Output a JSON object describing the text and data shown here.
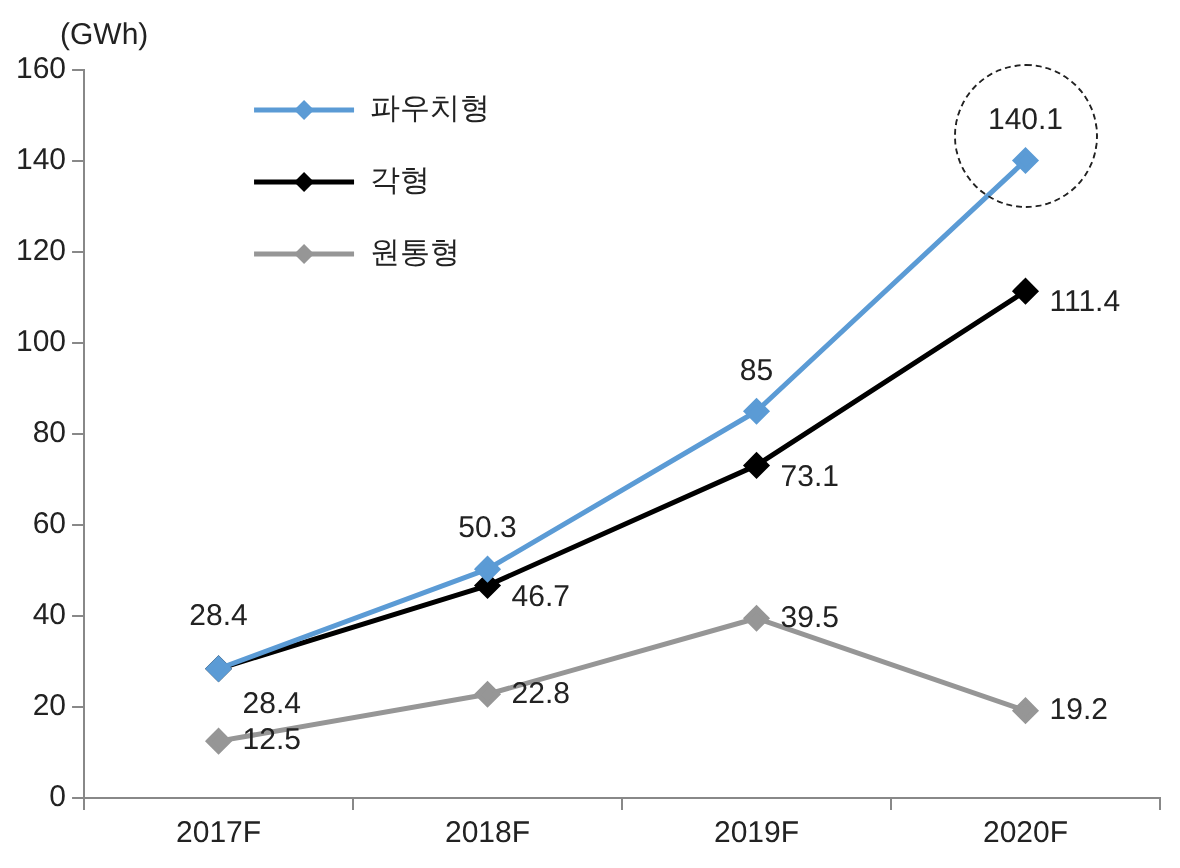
{
  "chart_data": {
    "type": "line",
    "ylabel": "(GWh)",
    "categories": [
      "2017F",
      "2018F",
      "2019F",
      "2020F"
    ],
    "series": [
      {
        "name": "파우치형",
        "color": "#5b9bd5",
        "values": [
          28.4,
          50.3,
          85,
          140.1
        ]
      },
      {
        "name": "각형",
        "color": "#000000",
        "values": [
          28.4,
          46.7,
          73.1,
          111.4
        ]
      },
      {
        "name": "원통형",
        "color": "#969696",
        "values": [
          12.5,
          22.8,
          39.5,
          19.2
        ]
      }
    ],
    "ylim": [
      0,
      160
    ],
    "yticks": [
      0,
      20,
      40,
      60,
      80,
      100,
      120,
      140,
      160
    ],
    "grid": false,
    "legend": "top left",
    "marker": "diamond",
    "line_style": "solid",
    "data_labels": true
  }
}
